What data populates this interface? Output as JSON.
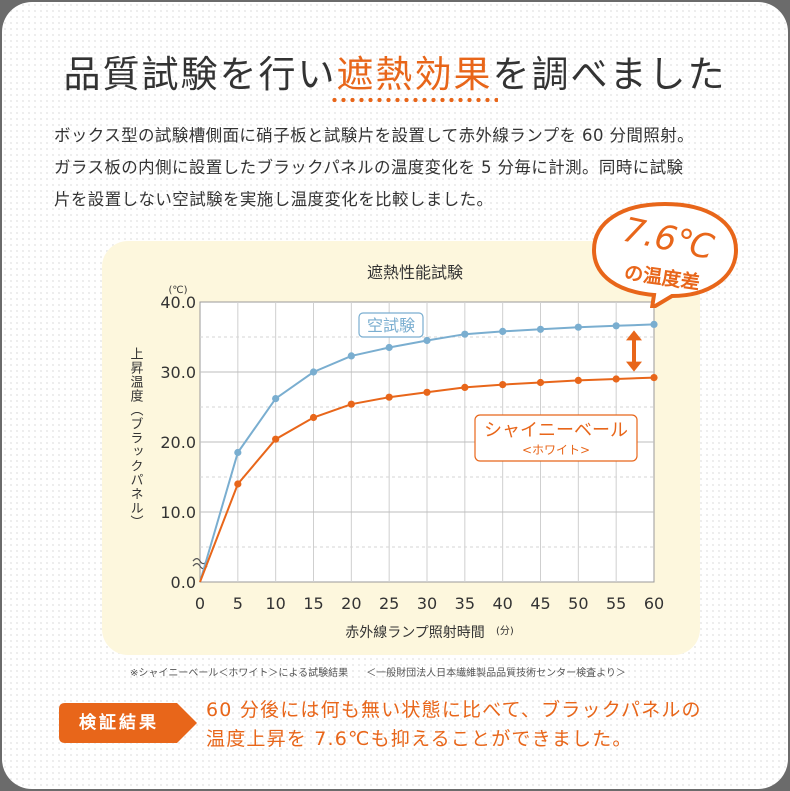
{
  "heading": {
    "part1": "品質試験を行い",
    "highlight": "遮熱効果",
    "part2": "を調べました"
  },
  "intro_lines": [
    "ボックス型の試験槽側面に硝子板と試験片を設置して赤外線ランプを 60 分間照射。",
    "ガラス板の内側に設置したブラックパネルの温度変化を 5 分毎に計測。同時に試験",
    "片を設置しない空試験を実施し温度変化を比較しました。"
  ],
  "badge": {
    "value": "7.6℃",
    "caption": "の温度差"
  },
  "footnote": {
    "left": "※シャイニーベール＜ホワイト＞による試験結果",
    "right": "＜一般財団法人日本繊維製品品質技術センター検査より＞"
  },
  "result": {
    "tag": "検証結果",
    "lines": [
      "60 分後には何も無い状態に比べて、ブラックパネルの",
      "温度上昇を 7.6℃も抑えることができました。"
    ]
  },
  "colors": {
    "accent": "#e8661a",
    "blank": "#7aaed0",
    "panel": "#fdf7dd",
    "grid": "#cfcfcf"
  },
  "chart_data": {
    "type": "line",
    "title": "遮熱性能試験",
    "xlabel": "赤外線ランプ照射時間",
    "xunit": "(分)",
    "ylabel": "上昇温度（ブラックパネル）",
    "yunit": "(℃)",
    "x": [
      0,
      5,
      10,
      15,
      20,
      25,
      30,
      35,
      40,
      45,
      50,
      55,
      60
    ],
    "xticks": [
      "0",
      "5",
      "10",
      "15",
      "20",
      "25",
      "30",
      "35",
      "40",
      "45",
      "50",
      "55",
      "60"
    ],
    "yticks": [
      "0.0",
      "10.0",
      "20.0",
      "30.0",
      "40.0"
    ],
    "ylim": [
      0,
      40
    ],
    "axis_break": true,
    "grid": true,
    "series": [
      {
        "name": "空試験",
        "color": "#7aaed0",
        "values": [
          0,
          18.5,
          26.2,
          30.0,
          32.3,
          33.5,
          34.5,
          35.4,
          35.8,
          36.1,
          36.4,
          36.6,
          36.8
        ]
      },
      {
        "name": "シャイニーベール",
        "subname": "<ホワイト>",
        "color": "#e8661a",
        "values": [
          0,
          14.0,
          20.4,
          23.5,
          25.4,
          26.4,
          27.1,
          27.8,
          28.2,
          28.5,
          28.8,
          29.0,
          29.2
        ]
      }
    ]
  }
}
